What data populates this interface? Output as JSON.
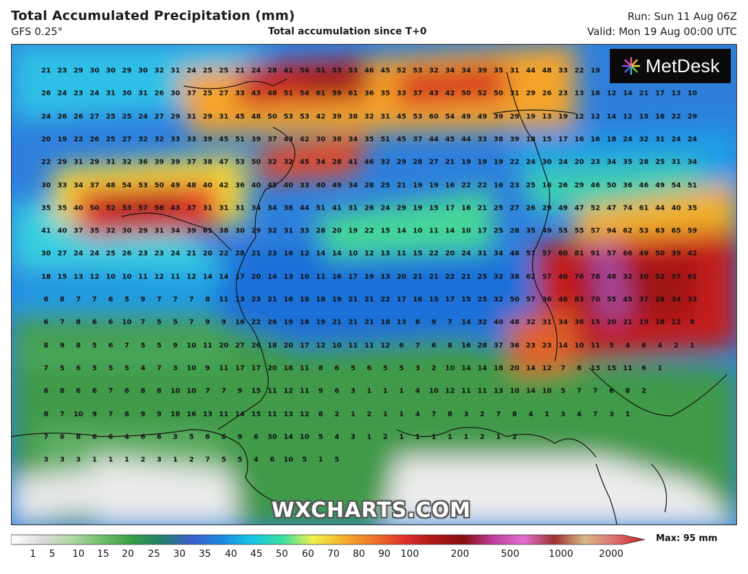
{
  "header": {
    "title": "Total Accumulated Precipitation (mm)",
    "model": "GFS 0.25°",
    "subtitle": "Total accumulation since T+0",
    "run": "Run: Sun 11 Aug 06Z",
    "valid": "Valid: Mon 19 Aug 00:00 UTC"
  },
  "logo": {
    "text": "MetDesk",
    "icon": "metdesk-logo-icon"
  },
  "watermark": "WXCHARTS.COM",
  "legend": {
    "max_label": "Max: 95 mm",
    "ticks": [
      "1",
      "5",
      "10",
      "15",
      "20",
      "25",
      "30",
      "35",
      "40",
      "45",
      "50",
      "60",
      "70",
      "80",
      "90",
      "100",
      "200",
      "500",
      "1000",
      "2000"
    ],
    "stops": [
      "#ffffff",
      "#dcdcdc",
      "#b3d9a8",
      "#70bf6a",
      "#3a9e45",
      "#23806b",
      "#3a5fd0",
      "#1b8ae0",
      "#16c8e8",
      "#38e0a0",
      "#f2f24a",
      "#f5b02a",
      "#f2762a",
      "#e0322a",
      "#b01818",
      "#8a1010",
      "#c040a0",
      "#e070d0",
      "#a03030",
      "#d8b888",
      "#e07070",
      "#c02020"
    ],
    "colors": {
      "high": "#b01818",
      "mid": "#1b8ae0",
      "low": "#3a9e45",
      "none": "#f0f0f0"
    }
  },
  "grid_values": [
    [
      "21",
      "23",
      "29",
      "30",
      "30",
      "29",
      "30",
      "32",
      "31",
      "24",
      "25",
      "25",
      "21",
      "24",
      "28",
      "41",
      "56",
      "51",
      "53",
      "53",
      "46",
      "45",
      "52",
      "53",
      "32",
      "34",
      "34",
      "39",
      "35",
      "31",
      "44",
      "48",
      "33",
      "22",
      "19"
    ],
    [
      "26",
      "24",
      "23",
      "24",
      "31",
      "30",
      "31",
      "26",
      "30",
      "37",
      "25",
      "27",
      "33",
      "43",
      "48",
      "51",
      "54",
      "61",
      "59",
      "61",
      "36",
      "35",
      "33",
      "37",
      "43",
      "42",
      "50",
      "52",
      "50",
      "31",
      "29",
      "26",
      "23",
      "13",
      "16",
      "12",
      "14",
      "21",
      "17",
      "13",
      "10"
    ],
    [
      "24",
      "26",
      "26",
      "27",
      "25",
      "25",
      "24",
      "27",
      "29",
      "31",
      "29",
      "31",
      "45",
      "48",
      "50",
      "53",
      "53",
      "42",
      "39",
      "38",
      "32",
      "31",
      "45",
      "53",
      "60",
      "54",
      "49",
      "49",
      "39",
      "29",
      "19",
      "13",
      "19",
      "12",
      "12",
      "14",
      "12",
      "15",
      "16",
      "22",
      "29"
    ],
    [
      "20",
      "19",
      "22",
      "26",
      "25",
      "27",
      "32",
      "32",
      "33",
      "33",
      "39",
      "45",
      "51",
      "39",
      "37",
      "43",
      "42",
      "30",
      "38",
      "34",
      "35",
      "51",
      "45",
      "37",
      "44",
      "45",
      "44",
      "33",
      "38",
      "39",
      "18",
      "15",
      "17",
      "16",
      "16",
      "18",
      "24",
      "32",
      "31",
      "24",
      "24"
    ],
    [
      "22",
      "29",
      "31",
      "29",
      "31",
      "32",
      "36",
      "39",
      "39",
      "37",
      "38",
      "47",
      "53",
      "50",
      "32",
      "32",
      "45",
      "34",
      "28",
      "41",
      "46",
      "32",
      "29",
      "28",
      "27",
      "21",
      "19",
      "19",
      "19",
      "22",
      "24",
      "30",
      "24",
      "20",
      "23",
      "34",
      "35",
      "28",
      "25",
      "31",
      "34"
    ],
    [
      "30",
      "33",
      "34",
      "37",
      "48",
      "54",
      "53",
      "50",
      "49",
      "48",
      "40",
      "42",
      "36",
      "40",
      "45",
      "40",
      "33",
      "40",
      "49",
      "34",
      "28",
      "25",
      "21",
      "19",
      "19",
      "16",
      "22",
      "22",
      "16",
      "23",
      "25",
      "16",
      "26",
      "29",
      "46",
      "50",
      "36",
      "46",
      "49",
      "54",
      "51"
    ],
    [
      "35",
      "35",
      "40",
      "50",
      "52",
      "53",
      "57",
      "56",
      "43",
      "37",
      "31",
      "31",
      "31",
      "34",
      "34",
      "38",
      "44",
      "51",
      "41",
      "31",
      "26",
      "24",
      "29",
      "19",
      "15",
      "17",
      "16",
      "21",
      "25",
      "27",
      "26",
      "29",
      "49",
      "47",
      "52",
      "47",
      "74",
      "61",
      "44",
      "40",
      "35"
    ],
    [
      "41",
      "40",
      "37",
      "35",
      "32",
      "30",
      "29",
      "31",
      "34",
      "39",
      "61",
      "38",
      "30",
      "29",
      "32",
      "31",
      "33",
      "28",
      "20",
      "19",
      "22",
      "15",
      "14",
      "10",
      "11",
      "14",
      "10",
      "17",
      "25",
      "28",
      "35",
      "49",
      "55",
      "55",
      "57",
      "94",
      "62",
      "53",
      "63",
      "65",
      "59"
    ],
    [
      "30",
      "27",
      "24",
      "24",
      "25",
      "26",
      "23",
      "23",
      "24",
      "21",
      "20",
      "22",
      "28",
      "21",
      "23",
      "16",
      "12",
      "14",
      "14",
      "10",
      "12",
      "13",
      "11",
      "15",
      "22",
      "20",
      "24",
      "31",
      "34",
      "46",
      "57",
      "57",
      "60",
      "81",
      "91",
      "57",
      "66",
      "49",
      "50",
      "39",
      "42"
    ],
    [
      "18",
      "15",
      "13",
      "12",
      "10",
      "10",
      "11",
      "12",
      "11",
      "12",
      "14",
      "14",
      "17",
      "20",
      "14",
      "13",
      "10",
      "11",
      "16",
      "17",
      "19",
      "13",
      "20",
      "21",
      "21",
      "22",
      "21",
      "25",
      "32",
      "38",
      "62",
      "57",
      "40",
      "76",
      "78",
      "48",
      "32",
      "30",
      "52",
      "37",
      "61"
    ],
    [
      "6",
      "8",
      "7",
      "7",
      "6",
      "5",
      "9",
      "7",
      "7",
      "7",
      "8",
      "11",
      "13",
      "23",
      "21",
      "16",
      "18",
      "18",
      "19",
      "21",
      "21",
      "22",
      "17",
      "16",
      "15",
      "17",
      "15",
      "25",
      "32",
      "50",
      "57",
      "36",
      "46",
      "83",
      "70",
      "55",
      "45",
      "37",
      "28",
      "34",
      "33"
    ],
    [
      "6",
      "7",
      "8",
      "6",
      "6",
      "10",
      "7",
      "5",
      "5",
      "7",
      "9",
      "9",
      "16",
      "22",
      "26",
      "19",
      "18",
      "19",
      "21",
      "21",
      "21",
      "18",
      "13",
      "8",
      "9",
      "7",
      "14",
      "32",
      "40",
      "48",
      "32",
      "31",
      "34",
      "36",
      "15",
      "20",
      "21",
      "19",
      "18",
      "12",
      "8"
    ],
    [
      "8",
      "9",
      "8",
      "5",
      "6",
      "7",
      "5",
      "5",
      "9",
      "10",
      "11",
      "20",
      "27",
      "26",
      "18",
      "20",
      "17",
      "12",
      "10",
      "11",
      "11",
      "12",
      "6",
      "7",
      "6",
      "8",
      "16",
      "28",
      "37",
      "36",
      "23",
      "23",
      "14",
      "10",
      "11",
      "5",
      "4",
      "6",
      "4",
      "2",
      "1"
    ],
    [
      "7",
      "5",
      "6",
      "5",
      "5",
      "5",
      "4",
      "7",
      "3",
      "10",
      "9",
      "11",
      "17",
      "17",
      "20",
      "18",
      "11",
      "8",
      "6",
      "5",
      "6",
      "5",
      "5",
      "3",
      "2",
      "10",
      "14",
      "14",
      "18",
      "20",
      "14",
      "12",
      "7",
      "8",
      "13",
      "15",
      "11",
      "6",
      "1"
    ],
    [
      "6",
      "8",
      "6",
      "6",
      "7",
      "6",
      "8",
      "8",
      "10",
      "10",
      "7",
      "7",
      "9",
      "15",
      "11",
      "12",
      "11",
      "9",
      "6",
      "3",
      "1",
      "1",
      "1",
      "4",
      "10",
      "12",
      "11",
      "11",
      "13",
      "10",
      "14",
      "10",
      "5",
      "7",
      "7",
      "6",
      "8",
      "2"
    ],
    [
      "8",
      "7",
      "10",
      "9",
      "7",
      "8",
      "9",
      "9",
      "18",
      "16",
      "13",
      "11",
      "14",
      "15",
      "11",
      "13",
      "12",
      "8",
      "2",
      "1",
      "2",
      "1",
      "1",
      "4",
      "7",
      "8",
      "3",
      "2",
      "7",
      "8",
      "4",
      "1",
      "3",
      "4",
      "7",
      "3",
      "1"
    ],
    [
      "7",
      "6",
      "8",
      "6",
      "6",
      "4",
      "6",
      "6",
      "3",
      "5",
      "6",
      "6",
      "9",
      "6",
      "30",
      "14",
      "10",
      "5",
      "4",
      "3",
      "1",
      "2",
      "1",
      "1",
      "1",
      "1",
      "1",
      "2",
      "1",
      "2"
    ],
    [
      "3",
      "3",
      "3",
      "1",
      "1",
      "1",
      "2",
      "3",
      "1",
      "2",
      "7",
      "5",
      "5",
      "4",
      "6",
      "10",
      "5",
      "1",
      "5"
    ]
  ]
}
